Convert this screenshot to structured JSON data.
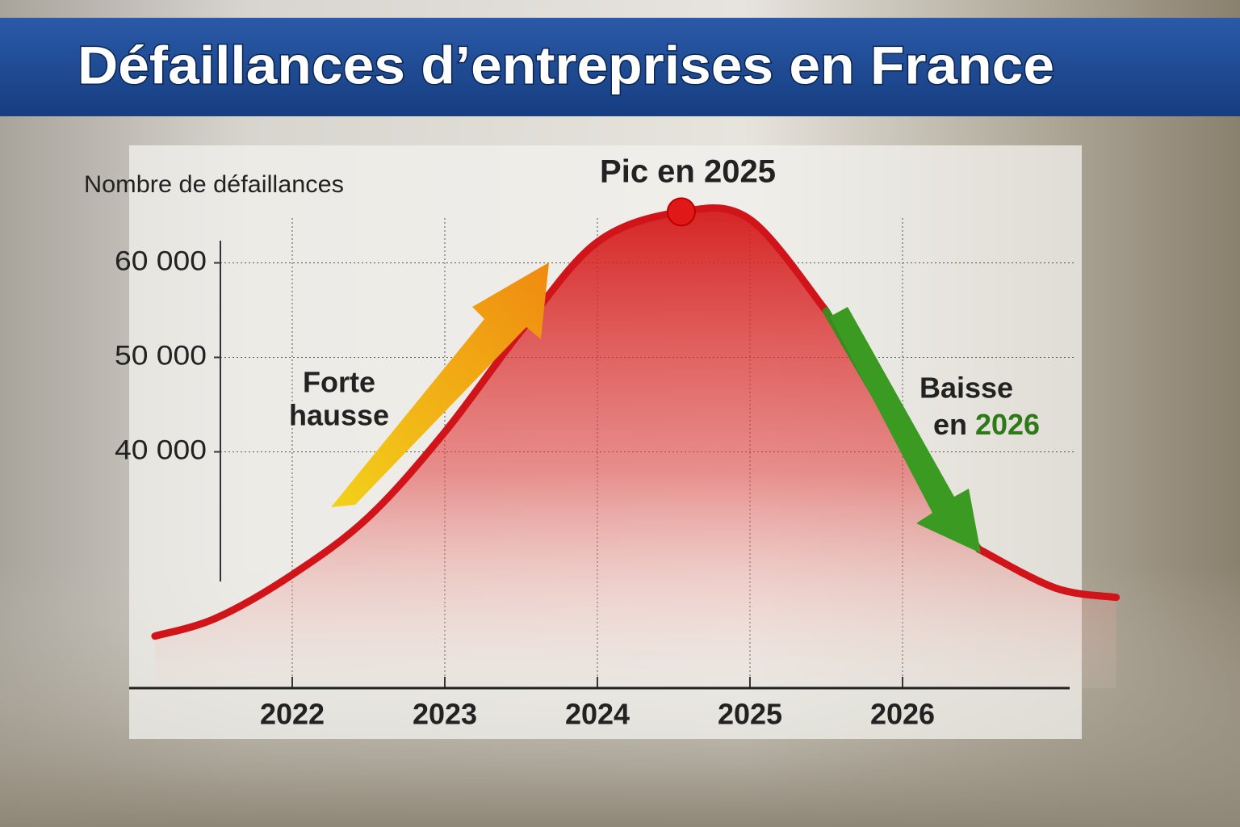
{
  "chart_data": {
    "type": "line",
    "title": "Défaillances d’entreprises en France",
    "y_label": "Nombre de défaillances",
    "x": [
      2021.1,
      2021.5,
      2022,
      2022.5,
      2023,
      2023.5,
      2024,
      2024.55,
      2025,
      2025.5,
      2026,
      2026.5,
      2027,
      2027.4
    ],
    "series": [
      {
        "color": "#d0141a",
        "values": [
          20500,
          22400,
          27000,
          33100,
          42100,
          52800,
          62200,
          65400,
          64600,
          54900,
          41200,
          29700,
          25600,
          24600
        ],
        "segment_colors": [
          "#d0141a",
          "#d0141a",
          "#d0141a",
          "#d0141a",
          "#d0141a",
          "#d0141a",
          "#d0141a",
          "#d0141a",
          "#d0141a",
          "#3a8a1e",
          "#3a8a1e",
          "#d0141a",
          "#d0141a"
        ]
      }
    ],
    "xlim": [
      2021,
      2027.5
    ],
    "xticks": [
      2022,
      2023,
      2024,
      2025,
      2026
    ],
    "ylim": [
      15000,
      67000
    ],
    "yticks": [
      {
        "value": 40000,
        "label": "40 000"
      },
      {
        "value": 50000,
        "label": "50 000"
      },
      {
        "value": 60000,
        "label": "60 000"
      }
    ],
    "grid": true,
    "annotations": {
      "peak": "Pic en 2025",
      "rise": [
        "Forte",
        "hausse"
      ],
      "decline": [
        "Baisse",
        "en",
        "2026"
      ]
    }
  }
}
